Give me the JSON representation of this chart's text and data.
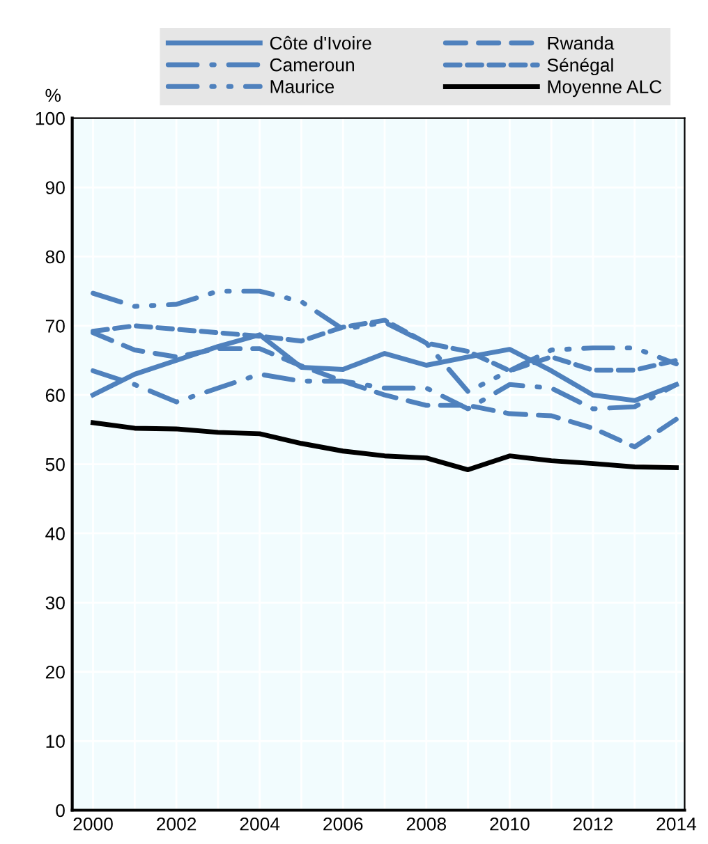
{
  "chart_data": {
    "type": "line",
    "ylabel": "%",
    "x": [
      2000,
      2001,
      2002,
      2003,
      2004,
      2005,
      2006,
      2007,
      2008,
      2009,
      2010,
      2011,
      2012,
      2013,
      2014
    ],
    "series": [
      {
        "name": "Côte d'Ivoire",
        "color": "#4f81bd",
        "line_style": "solid",
        "values": [
          60,
          63,
          65,
          67,
          68.7,
          64,
          63.7,
          66,
          64.3,
          65.5,
          66.6,
          63.5,
          60,
          59.2,
          61.5
        ]
      },
      {
        "name": "Rwanda",
        "color": "#4f81bd",
        "line_style": "long_dash",
        "values": [
          69,
          66.5,
          65.5,
          66.7,
          66.7,
          64.2,
          62,
          60,
          58.5,
          58.5,
          57.3,
          57,
          55.2,
          52.5,
          56.5
        ]
      },
      {
        "name": "Cameroun",
        "color": "#4f81bd",
        "line_style": "dash_dot",
        "values": [
          63.5,
          61.5,
          59,
          61,
          63,
          62,
          62,
          61,
          61,
          58,
          61.5,
          61,
          58,
          58.3,
          61.5
        ]
      },
      {
        "name": "Sénégal",
        "color": "#4f81bd",
        "line_style": "dashed",
        "values": [
          69.2,
          70,
          69.5,
          69,
          68.5,
          67.8,
          69.8,
          70.8,
          67.5,
          66.3,
          63.5,
          65.5,
          63.6,
          63.6,
          65
        ]
      },
      {
        "name": "Maurice",
        "color": "#4f81bd",
        "line_style": "dash_dot_dot",
        "values": [
          74.7,
          72.8,
          73.1,
          75,
          75,
          73.5,
          69.5,
          70.5,
          67.5,
          60.5,
          63.5,
          66.5,
          66.8,
          66.8,
          64.5
        ]
      },
      {
        "name": "Moyenne ALC",
        "color": "#000000",
        "line_style": "solid",
        "values": [
          56,
          55.2,
          55.1,
          54.6,
          54.4,
          53,
          51.9,
          51.2,
          50.9,
          49.2,
          51.2,
          50.5,
          50.1,
          49.6,
          49.5
        ]
      }
    ],
    "xlim": [
      1999.5,
      2014.2
    ],
    "ylim": [
      0,
      100
    ],
    "xticks": [
      2000,
      {
        "value": 2001,
        "label": null
      },
      2002,
      {
        "value": 2003,
        "label": null
      },
      2004,
      {
        "value": 2005,
        "label": null
      },
      2006,
      {
        "value": 2007,
        "label": null
      },
      2008,
      {
        "value": 2009,
        "label": null
      },
      2010,
      {
        "value": 2011,
        "label": null
      },
      2012,
      {
        "value": 2013,
        "label": null
      },
      2014
    ],
    "yticks": [
      0,
      10,
      20,
      30,
      40,
      50,
      60,
      70,
      80,
      90,
      100
    ],
    "grid": true,
    "legend": "top"
  }
}
